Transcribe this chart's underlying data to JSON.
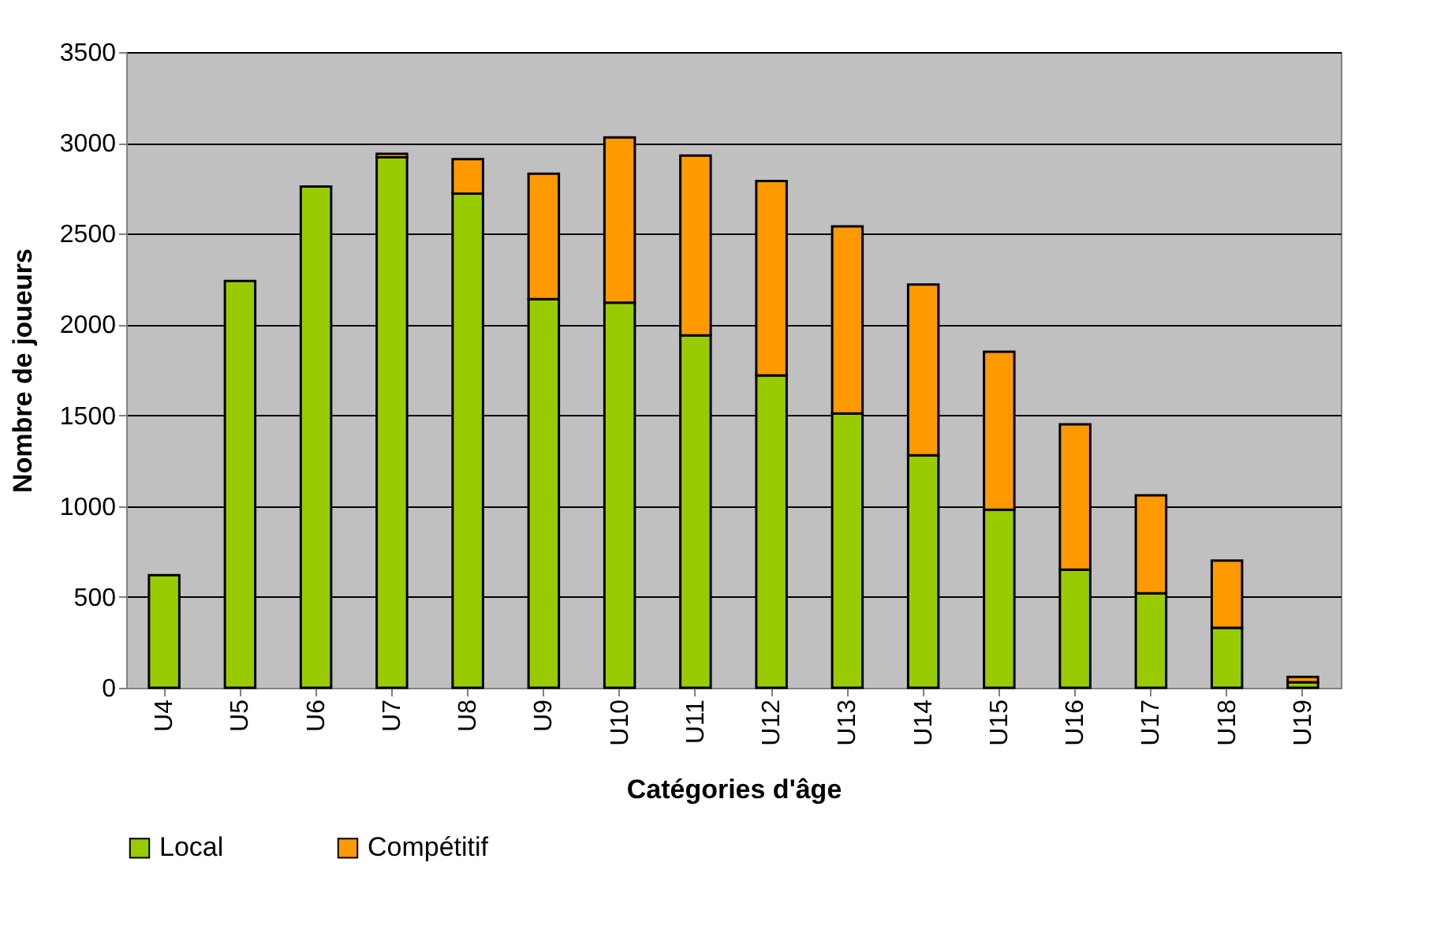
{
  "chart_data": {
    "type": "bar",
    "stacked": true,
    "xlabel": "Catégories d'âge",
    "ylabel": "Nombre de joueurs",
    "categories": [
      "U4",
      "U5",
      "U6",
      "U7",
      "U8",
      "U9",
      "U10",
      "U11",
      "U12",
      "U13",
      "U14",
      "U15",
      "U16",
      "U17",
      "U18",
      "U19"
    ],
    "series": [
      {
        "name": "Local",
        "color": "#99cc00",
        "values": [
          620,
          2240,
          2760,
          2920,
          2720,
          2140,
          2120,
          1940,
          1720,
          1510,
          1280,
          980,
          650,
          520,
          330,
          30
        ]
      },
      {
        "name": "Compétitif",
        "color": "#ff9900",
        "values": [
          null,
          null,
          null,
          20,
          190,
          690,
          910,
          990,
          1070,
          1030,
          940,
          870,
          800,
          540,
          370,
          30
        ]
      }
    ],
    "ylim": [
      0,
      3500
    ],
    "yticks": [
      0,
      500,
      1000,
      1500,
      2000,
      2500,
      3000,
      3500
    ],
    "grid": "y",
    "legend": "bottom"
  }
}
